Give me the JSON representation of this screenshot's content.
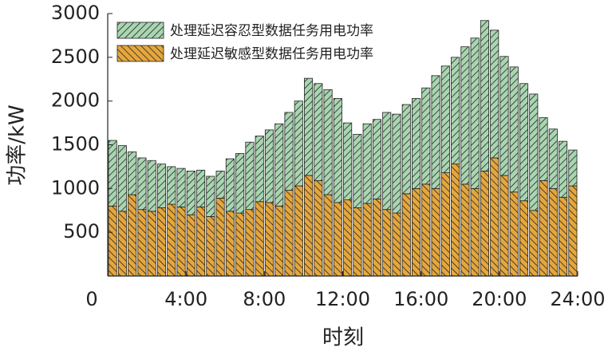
{
  "chart_data": {
    "type": "stacked-bar",
    "x": [
      0,
      0.5,
      1,
      1.5,
      2,
      2.5,
      3,
      3.5,
      4,
      4.5,
      5,
      5.5,
      6,
      6.5,
      7,
      7.5,
      8,
      8.5,
      9,
      9.5,
      10,
      10.5,
      11,
      11.5,
      12,
      12.5,
      13,
      13.5,
      14,
      14.5,
      15,
      15.5,
      16,
      16.5,
      17,
      17.5,
      18,
      18.5,
      19,
      19.5,
      20,
      20.5,
      21,
      21.5,
      22,
      22.5,
      23,
      23.5
    ],
    "series": [
      {
        "name": "处理延迟容忍型数据任务用电功率",
        "color": "#a9d6b1",
        "values": [
          750,
          750,
          490,
          590,
          580,
          500,
          430,
          440,
          500,
          420,
          460,
          310,
          600,
          680,
          770,
          750,
          830,
          940,
          890,
          970,
          1110,
          1110,
          1200,
          1190,
          880,
          840,
          910,
          910,
          1110,
          1130,
          1020,
          1030,
          1100,
          1290,
          1220,
          1220,
          1570,
          1720,
          1720,
          1460,
          1360,
          1430,
          1340,
          1330,
          720,
          680,
          640,
          410
        ]
      },
      {
        "name": "处理延迟敏感型数据任务用电功率",
        "color": "#e5a73d",
        "values": [
          800,
          740,
          930,
          760,
          740,
          780,
          820,
          790,
          700,
          790,
          680,
          890,
          740,
          720,
          760,
          850,
          840,
          800,
          980,
          1030,
          1150,
          1090,
          930,
          840,
          870,
          780,
          830,
          880,
          760,
          720,
          940,
          1000,
          1050,
          1000,
          1180,
          1280,
          1050,
          1000,
          1200,
          1350,
          1150,
          960,
          860,
          750,
          1090,
          1000,
          900,
          1030
        ]
      }
    ],
    "bar_width": 0.5,
    "xlabel": "时刻",
    "ylabel": "功率/kW",
    "xlim": [
      0,
      24
    ],
    "xticks": [
      {
        "value": 0,
        "label": "0"
      },
      {
        "value": 4,
        "label": "4:00"
      },
      {
        "value": 8,
        "label": "8:00"
      },
      {
        "value": 12,
        "label": "12:00"
      },
      {
        "value": 16,
        "label": "16:00"
      },
      {
        "value": 20,
        "label": "20:00"
      },
      {
        "value": 24,
        "label": "24:00"
      }
    ],
    "ylim": [
      0,
      3000
    ],
    "yticks": [
      500,
      1000,
      1500,
      2000,
      2500,
      3000
    ],
    "legend": "upper-left"
  }
}
